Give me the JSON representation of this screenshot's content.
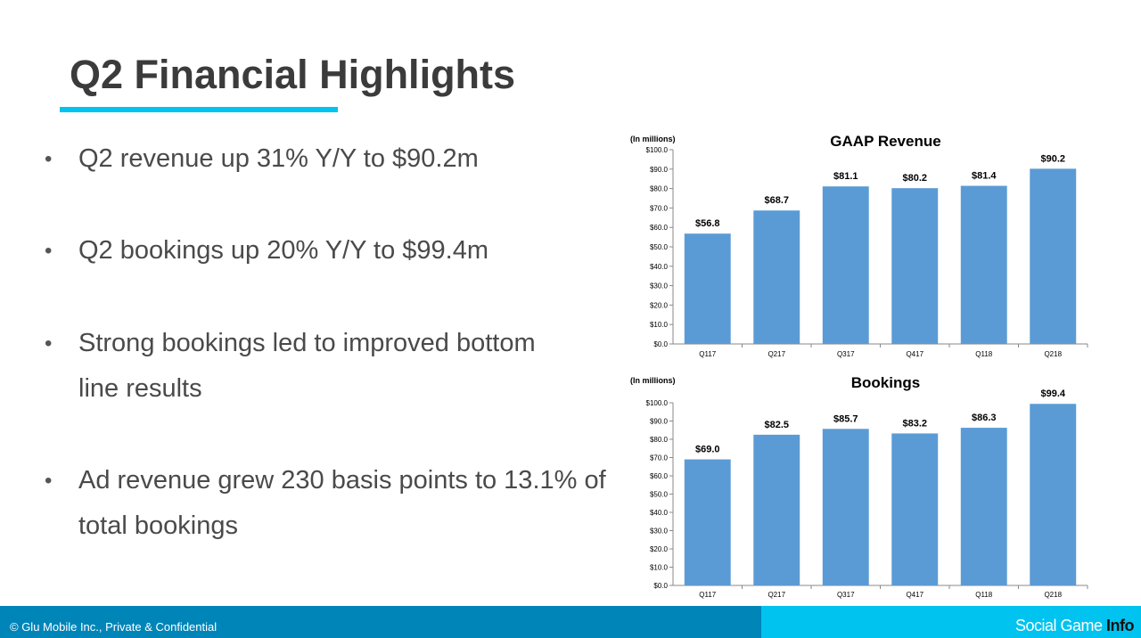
{
  "slide": {
    "title": "Q2 Financial Highlights",
    "accent_color": "#00c3ef"
  },
  "bullets": [
    {
      "marker": "•",
      "text": "Q2 revenue up 31% Y/Y to $90.2m"
    },
    {
      "marker": "•",
      "text": "Q2 bookings up 20% Y/Y to $99.4m"
    },
    {
      "marker": "•",
      "text": "Strong bookings led to improved bottom line results"
    },
    {
      "marker": "•",
      "text": "Ad revenue grew 230 basis points to 13.1% of total bookings"
    }
  ],
  "footer": {
    "copyright": "© Glu Mobile Inc., Private & Confidential",
    "watermark_light": "Social Game ",
    "watermark_bold": "Info",
    "left_color": "#0085b8",
    "right_color": "#00c3ef"
  },
  "chart_data": [
    {
      "type": "bar",
      "title": "GAAP Revenue",
      "unit_note": "(In millions)",
      "categories": [
        "Q117",
        "Q217",
        "Q317",
        "Q417",
        "Q118",
        "Q218"
      ],
      "values": [
        56.8,
        68.7,
        81.1,
        80.2,
        81.4,
        90.2
      ],
      "data_labels": [
        "$56.8",
        "$68.7",
        "$81.1",
        "$80.2",
        "$81.4",
        "$90.2"
      ],
      "yticks": [
        "$0.0",
        "$10.0",
        "$20.0",
        "$30.0",
        "$40.0",
        "$50.0",
        "$60.0",
        "$70.0",
        "$80.0",
        "$90.0",
        "$100.0"
      ],
      "ylim": [
        0,
        100
      ],
      "grid": false,
      "bar_color": "#5b9bd5"
    },
    {
      "type": "bar",
      "title": "Bookings",
      "unit_note": "(In millions)",
      "categories": [
        "Q117",
        "Q217",
        "Q317",
        "Q417",
        "Q118",
        "Q218"
      ],
      "values": [
        69.0,
        82.5,
        85.7,
        83.2,
        86.3,
        99.4
      ],
      "data_labels": [
        "$69.0",
        "$82.5",
        "$85.7",
        "$83.2",
        "$86.3",
        "$99.4"
      ],
      "yticks": [
        "$0.0",
        "$10.0",
        "$20.0",
        "$30.0",
        "$40.0",
        "$50.0",
        "$60.0",
        "$70.0",
        "$80.0",
        "$90.0",
        "$100.0"
      ],
      "ylim": [
        0,
        100
      ],
      "grid": false,
      "bar_color": "#5b9bd5"
    }
  ]
}
